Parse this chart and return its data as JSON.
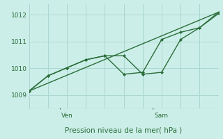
{
  "bg_color": "#cceee8",
  "plot_bg_color": "#cceee8",
  "grid_color": "#aad8d0",
  "line_color": "#2a6e3a",
  "title": "Pression niveau de la mer( hPa )",
  "ylim": [
    1008.5,
    1012.4
  ],
  "yticks": [
    1009,
    1010,
    1011,
    1012
  ],
  "xlim": [
    0,
    10
  ],
  "line1_x": [
    0,
    1,
    2,
    3,
    4,
    5,
    6,
    7,
    8,
    9,
    10
  ],
  "line1_y": [
    1009.15,
    1009.72,
    1010.02,
    1010.32,
    1010.47,
    1010.47,
    1009.78,
    1009.85,
    1011.08,
    1011.52,
    1012.05
  ],
  "line2_x": [
    0,
    1,
    2,
    3,
    4,
    5,
    6,
    7,
    8,
    9,
    10
  ],
  "line2_y": [
    1009.15,
    1009.72,
    1010.02,
    1010.32,
    1010.47,
    1009.78,
    1009.85,
    1011.08,
    1011.35,
    1011.52,
    1012.1
  ],
  "line3_x": [
    0,
    10
  ],
  "line3_y": [
    1009.15,
    1012.1
  ],
  "ven_x": 1.65,
  "sam_x": 6.55,
  "xtick_positions": [
    1.65,
    6.55
  ],
  "xtick_labels": [
    "Ven",
    "Sam"
  ],
  "num_xgrid": 10
}
